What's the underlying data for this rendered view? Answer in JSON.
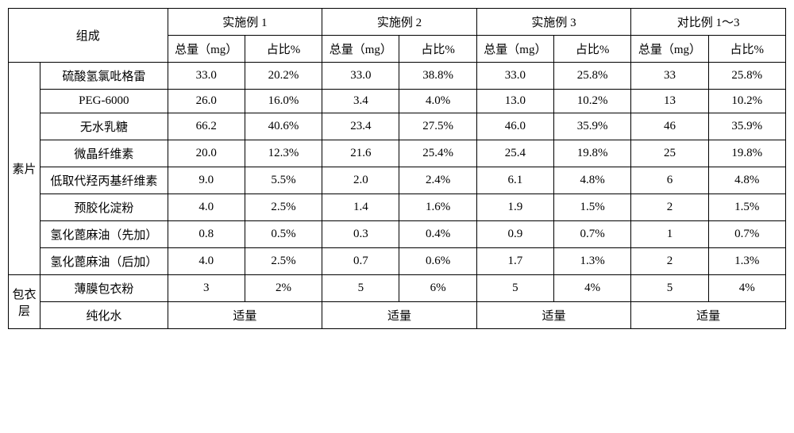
{
  "table": {
    "header": {
      "composition_label": "组成",
      "groups": [
        "实施例 1",
        "实施例 2",
        "实施例 3",
        "对比例 1～3"
      ],
      "total_label": "总量（mg）",
      "pct_label": "占比%"
    },
    "section_labels": {
      "tablet": "素片",
      "coating": "包衣层"
    },
    "rows_tablet": [
      {
        "name": "硫酸氢氯吡格雷",
        "values": [
          "33.0",
          "20.2%",
          "33.0",
          "38.8%",
          "33.0",
          "25.8%",
          "33",
          "25.8%"
        ]
      },
      {
        "name": "PEG-6000",
        "values": [
          "26.0",
          "16.0%",
          "3.4",
          "4.0%",
          "13.0",
          "10.2%",
          "13",
          "10.2%"
        ]
      },
      {
        "name": "无水乳糖",
        "values": [
          "66.2",
          "40.6%",
          "23.4",
          "27.5%",
          "46.0",
          "35.9%",
          "46",
          "35.9%"
        ]
      },
      {
        "name": "微晶纤维素",
        "values": [
          "20.0",
          "12.3%",
          "21.6",
          "25.4%",
          "25.4",
          "19.8%",
          "25",
          "19.8%"
        ]
      },
      {
        "name": "低取代羟丙基纤维素",
        "values": [
          "9.0",
          "5.5%",
          "2.0",
          "2.4%",
          "6.1",
          "4.8%",
          "6",
          "4.8%"
        ]
      },
      {
        "name": "预胶化淀粉",
        "values": [
          "4.0",
          "2.5%",
          "1.4",
          "1.6%",
          "1.9",
          "1.5%",
          "2",
          "1.5%"
        ]
      },
      {
        "name": "氢化蓖麻油（先加）",
        "values": [
          "0.8",
          "0.5%",
          "0.3",
          "0.4%",
          "0.9",
          "0.7%",
          "1",
          "0.7%"
        ]
      },
      {
        "name": "氢化蓖麻油（后加）",
        "values": [
          "4.0",
          "2.5%",
          "0.7",
          "0.6%",
          "1.7",
          "1.3%",
          "2",
          "1.3%"
        ]
      }
    ],
    "rows_coating": [
      {
        "name": "薄膜包衣粉",
        "values": [
          "3",
          "2%",
          "5",
          "6%",
          "5",
          "4%",
          "5",
          "4%"
        ]
      },
      {
        "name": "纯化水",
        "merged": true,
        "merged_value": "适量"
      }
    ]
  },
  "style": {
    "font_family": "SimSun",
    "font_size_pt": 11,
    "border_color": "#000000",
    "background_color": "#ffffff",
    "text_color": "#000000"
  }
}
